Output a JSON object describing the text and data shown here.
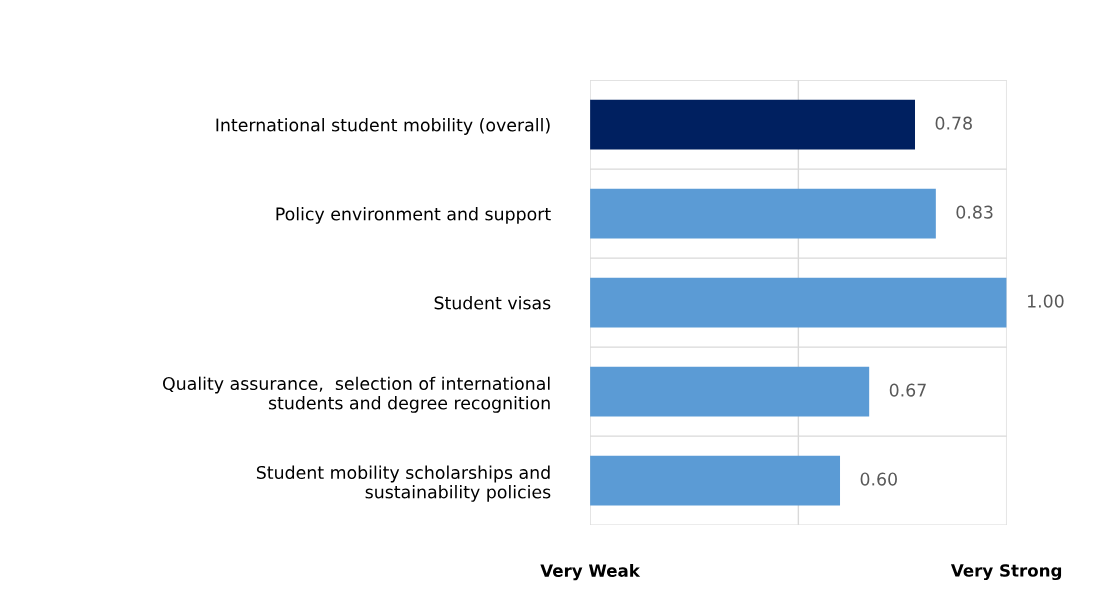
{
  "chart_data": {
    "type": "bar",
    "orientation": "horizontal",
    "categories": [
      "International student mobility (overall)",
      "Policy environment and support",
      "Student visas",
      "Quality assurance,  selection of international\nstudents and degree recognition",
      "Student mobility scholarships and\nsustainability policies"
    ],
    "values": [
      0.78,
      0.83,
      1.0,
      0.67,
      0.6
    ],
    "colors": [
      "#002060",
      "#5b9bd5",
      "#5b9bd5",
      "#5b9bd5",
      "#5b9bd5"
    ],
    "value_labels": [
      "0.78",
      "0.83",
      "1.00",
      "0.67",
      "0.60"
    ],
    "legend": false,
    "xlim": [
      0,
      1
    ],
    "xticks": [
      {
        "value": 0,
        "label": null
      },
      {
        "value": 0.5,
        "label": null
      },
      {
        "value": 1,
        "label": null
      }
    ],
    "tick_labels": "y",
    "annotations": [
      "Very Weak",
      "Very Strong"
    ],
    "grid": true
  }
}
